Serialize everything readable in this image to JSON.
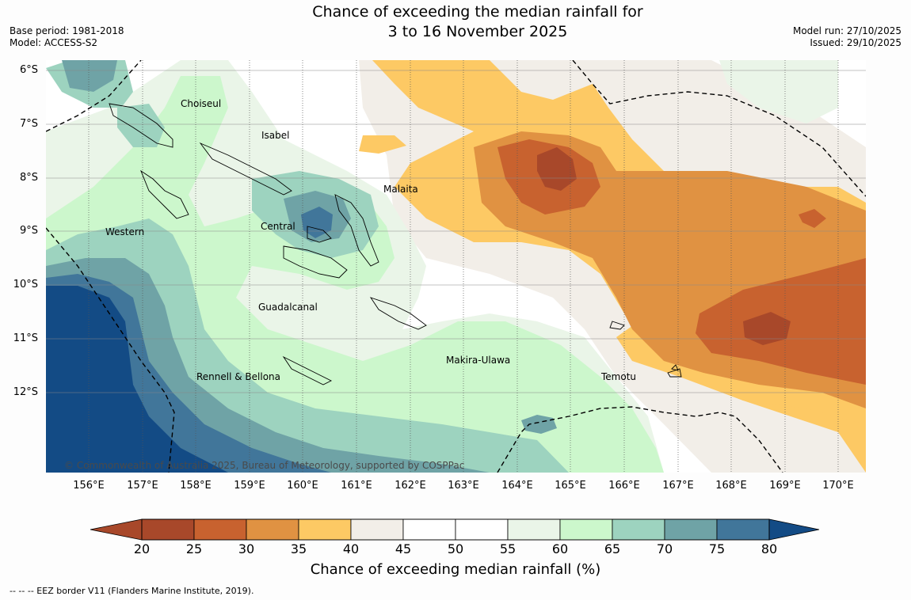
{
  "header": {
    "title_line1": "Chance of exceeding the median rainfall for",
    "title_line2": "3 to 16 November 2025",
    "base_period": "Base period: 1981-2018",
    "model": "Model: ACCESS-S2",
    "model_run": "Model run: 27/10/2025",
    "issued": "Issued: 29/10/2025"
  },
  "map": {
    "lat_labels": [
      "6°S",
      "7°S",
      "8°S",
      "9°S",
      "10°S",
      "11°S",
      "12°S"
    ],
    "lon_labels": [
      "156°E",
      "157°E",
      "158°E",
      "159°E",
      "160°E",
      "161°E",
      "162°E",
      "163°E",
      "164°E",
      "165°E",
      "166°E",
      "167°E",
      "168°E",
      "169°E",
      "170°E"
    ],
    "region_labels": {
      "choiseul": "Choiseul",
      "isabel": "Isabel",
      "malaita": "Malaita",
      "western": "Western",
      "central": "Central",
      "guadalcanal": "Guadalcanal",
      "makira_ulawa": "Makira-Ulawa",
      "rennell_bellona": "Rennell & Bellona",
      "temotu": "Temotu"
    },
    "copyright": "© Commonwealth of Australia 2025, Bureau of Meteorology, supported by COSPPac"
  },
  "colorbar": {
    "ticks": [
      "20",
      "25",
      "30",
      "35",
      "40",
      "45",
      "50",
      "55",
      "60",
      "65",
      "70",
      "75",
      "80"
    ],
    "colors": [
      "#a8482a",
      "#c8622f",
      "#e09242",
      "#fdc964",
      "#f2eee8",
      "#ffffff",
      "#ffffff",
      "#eaf5e8",
      "#ccf7cc",
      "#9dd3bf",
      "#6fa3a6",
      "#41769a"
    ],
    "under_color": "#a8482a",
    "over_color": "#134b85",
    "title": "Chance of exceeding median rainfall (%)"
  },
  "footer": {
    "eez_note": "--  --  -- EEZ border V11 (Flanders Marine Institute, 2019)."
  }
}
